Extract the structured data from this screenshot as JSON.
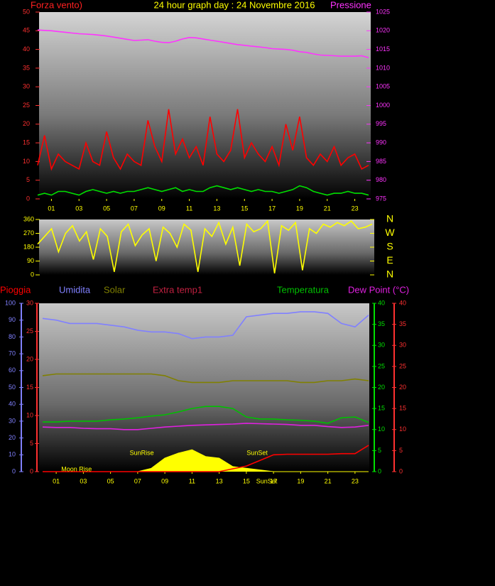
{
  "chart_data": [
    {
      "type": "line",
      "title": "24 hour graph day : 24 Novembre 2016",
      "y_label": "Forza vento)",
      "y2_label": "Pressione",
      "xlim": [
        0,
        24
      ],
      "xticks": [
        {
          "value": 1,
          "label": "01"
        },
        {
          "value": 3,
          "label": "03"
        },
        {
          "value": 5,
          "label": "05"
        },
        {
          "value": 7,
          "label": "07"
        },
        {
          "value": 9,
          "label": "09"
        },
        11,
        13,
        15,
        17,
        19,
        21,
        23
      ],
      "ylim": [
        0,
        50
      ],
      "yticks": [
        0,
        5,
        10,
        15,
        20,
        25,
        30,
        35,
        40,
        45,
        50
      ],
      "y2lim": [
        975,
        1025
      ],
      "y2ticks": [
        975,
        980,
        985,
        990,
        995,
        1000,
        1005,
        1010,
        1015,
        1020,
        1025
      ],
      "x": [
        0,
        0.5,
        1,
        1.5,
        2,
        2.5,
        3,
        3.5,
        4,
        4.5,
        5,
        5.5,
        6,
        6.5,
        7,
        7.5,
        8,
        8.5,
        9,
        9.5,
        10,
        10.5,
        11,
        11.5,
        12,
        12.5,
        13,
        13.5,
        14,
        14.5,
        15,
        15.5,
        16,
        16.5,
        17,
        17.5,
        18,
        18.5,
        19,
        19.5,
        20,
        20.5,
        21,
        21.5,
        22,
        22.5,
        23,
        23.5,
        24
      ],
      "series": [
        {
          "color": "#ff0000",
          "values": [
            9,
            17,
            8,
            12,
            10,
            9,
            8,
            15,
            10,
            9,
            18,
            11,
            8,
            12,
            10,
            9,
            21,
            14,
            10,
            24,
            12,
            16,
            11,
            14,
            9,
            22,
            12,
            10,
            13,
            24,
            11,
            15,
            12,
            10,
            14,
            9,
            20,
            13,
            22,
            11,
            9,
            12,
            10,
            14,
            9,
            11,
            12,
            8,
            9
          ]
        },
        {
          "color": "#00e000",
          "values": [
            1,
            1.5,
            1,
            2,
            2,
            1.5,
            1,
            2,
            2.5,
            2,
            1.5,
            2,
            1.5,
            2,
            2,
            2.5,
            3,
            2.5,
            2,
            2.5,
            3,
            2,
            2.5,
            2,
            2,
            3,
            3.5,
            3,
            2.5,
            3,
            2.5,
            2,
            2.5,
            2,
            2,
            1.5,
            2,
            2.5,
            3.5,
            3,
            2,
            1.5,
            1,
            1.5,
            1.5,
            2,
            1.5,
            1.5,
            1
          ]
        },
        {
          "color": "#ff33ff",
          "axis": "y2",
          "values": [
            1020.2,
            1020.1,
            1020.0,
            1019.8,
            1019.6,
            1019.4,
            1019.2,
            1019.1,
            1019.0,
            1018.8,
            1018.6,
            1018.3,
            1018.0,
            1017.7,
            1017.4,
            1017.5,
            1017.6,
            1017.2,
            1016.9,
            1016.8,
            1017.2,
            1017.8,
            1018.2,
            1018.1,
            1017.8,
            1017.5,
            1017.2,
            1016.9,
            1016.6,
            1016.3,
            1016.1,
            1015.9,
            1015.7,
            1015.5,
            1015.2,
            1015.1,
            1015.0,
            1014.8,
            1014.4,
            1014.2,
            1013.8,
            1013.5,
            1013.4,
            1013.3,
            1013.2,
            1013.2,
            1013.2,
            1013.3,
            1012.8
          ]
        }
      ]
    },
    {
      "type": "line",
      "xlim": [
        0,
        24
      ],
      "ylim": [
        0,
        360
      ],
      "yticks": [
        0,
        90,
        180,
        270,
        360
      ],
      "y2lim": [
        0,
        360
      ],
      "y2ticks": [
        {
          "value": 0,
          "label": "N"
        },
        {
          "value": 90,
          "label": "E"
        },
        {
          "value": 180,
          "label": "S"
        },
        {
          "value": 270,
          "label": "W"
        },
        {
          "value": 360,
          "label": "N"
        }
      ],
      "x": [
        0,
        0.5,
        1,
        1.5,
        2,
        2.5,
        3,
        3.5,
        4,
        4.5,
        5,
        5.5,
        6,
        6.5,
        7,
        7.5,
        8,
        8.5,
        9,
        9.5,
        10,
        10.5,
        11,
        11.5,
        12,
        12.5,
        13,
        13.5,
        14,
        14.5,
        15,
        15.5,
        16,
        16.5,
        17,
        17.5,
        18,
        18.5,
        19,
        19.5,
        20,
        20.5,
        21,
        21.5,
        22,
        22.5,
        23,
        23.5,
        24
      ],
      "series": [
        {
          "color": "#ffff00",
          "values": [
            200,
            250,
            300,
            150,
            270,
            320,
            220,
            280,
            100,
            300,
            250,
            20,
            280,
            330,
            190,
            260,
            300,
            90,
            310,
            270,
            180,
            330,
            290,
            20,
            300,
            250,
            340,
            200,
            310,
            60,
            330,
            280,
            300,
            350,
            10,
            320,
            290,
            340,
            30,
            300,
            270,
            330,
            310,
            340,
            320,
            350,
            300,
            310,
            330
          ]
        }
      ]
    },
    {
      "type": "line",
      "xlim": [
        0,
        24
      ],
      "xticks": [
        {
          "value": 1,
          "label": "01"
        },
        {
          "value": 3,
          "label": "03"
        },
        {
          "value": 5,
          "label": "05"
        },
        {
          "value": 7,
          "label": "07"
        },
        {
          "value": 9,
          "label": "09"
        },
        11,
        13,
        15,
        17,
        19,
        21,
        23
      ],
      "ylim": [
        0,
        100
      ],
      "yticks": [
        0,
        10,
        20,
        30,
        40,
        50,
        60,
        70,
        80,
        90,
        100
      ],
      "rain_ylim": [
        0,
        30
      ],
      "rain_yticks": [
        0,
        5,
        10,
        15,
        20,
        25,
        30
      ],
      "y2lim": [
        0,
        40
      ],
      "y2ticks": [
        0,
        5,
        10,
        15,
        20,
        25,
        30,
        35,
        40
      ],
      "dew_ylim": [
        0,
        40
      ],
      "dew_yticks": [
        0,
        5,
        10,
        15,
        20,
        25,
        30,
        35,
        40
      ],
      "extra_labels": [
        "Extra temp1"
      ],
      "x": [
        0,
        1,
        2,
        3,
        4,
        5,
        6,
        7,
        8,
        9,
        10,
        11,
        12,
        13,
        14,
        15,
        16,
        17,
        18,
        19,
        20,
        21,
        22,
        23,
        24
      ],
      "series": [
        {
          "color": "#ffff00",
          "style": "area",
          "values": [
            0,
            0,
            0,
            0,
            0,
            0,
            0,
            0,
            2,
            8,
            11,
            13,
            9,
            8,
            3,
            2,
            1,
            0,
            0,
            0,
            0,
            0,
            0,
            0,
            0
          ]
        },
        {
          "name": "Pioggia",
          "color": "#ff0000",
          "axis": "rain",
          "values": [
            0,
            0,
            0,
            0,
            0,
            0,
            0,
            0,
            0,
            0,
            0,
            0,
            0,
            0,
            0.5,
            1,
            2,
            3,
            3.1,
            3.1,
            3.1,
            3.1,
            3.2,
            3.2,
            4.7
          ]
        },
        {
          "name": "Umidita",
          "color": "#8080ff",
          "values": [
            91,
            90,
            88,
            88,
            88,
            87,
            86,
            84,
            83,
            83,
            82,
            79,
            80,
            80,
            81,
            92,
            93,
            94,
            94,
            95,
            95,
            94,
            88,
            86,
            93
          ]
        },
        {
          "name": "Solar",
          "color": "#808000",
          "values": [
            57,
            58,
            58,
            58,
            58,
            58,
            58,
            58,
            58,
            57,
            54,
            53,
            53,
            53,
            54,
            54,
            54,
            54,
            54,
            53,
            53,
            54,
            54,
            55,
            54
          ]
        },
        {
          "name": "Temperatura",
          "color": "#00c000",
          "axis": "y2",
          "values": [
            11.8,
            11.8,
            12,
            12,
            12,
            12.3,
            12.5,
            12.8,
            13.2,
            13.5,
            14.2,
            15,
            15.5,
            15.5,
            15,
            13,
            12.5,
            12.5,
            12.3,
            12.2,
            12,
            11.5,
            12.8,
            13,
            11.7
          ]
        },
        {
          "name": "Dew Point (°C)",
          "color": "#e020e0",
          "axis": "dew",
          "values": [
            10.6,
            10.5,
            10.5,
            10.3,
            10.2,
            10.2,
            10,
            10,
            10.3,
            10.6,
            10.8,
            11,
            11.1,
            11.2,
            11.3,
            11.5,
            11.4,
            11.3,
            11.2,
            11,
            11,
            10.7,
            10.5,
            10.6,
            11
          ]
        }
      ],
      "annotations": [
        {
          "text": "SunRise",
          "x": 7.3
        },
        {
          "text": "SunSet",
          "x": 15.8
        },
        {
          "text": "Moon Rise",
          "x": 2.5
        },
        {
          "text": "SunSet",
          "x": 16.5
        }
      ]
    }
  ]
}
